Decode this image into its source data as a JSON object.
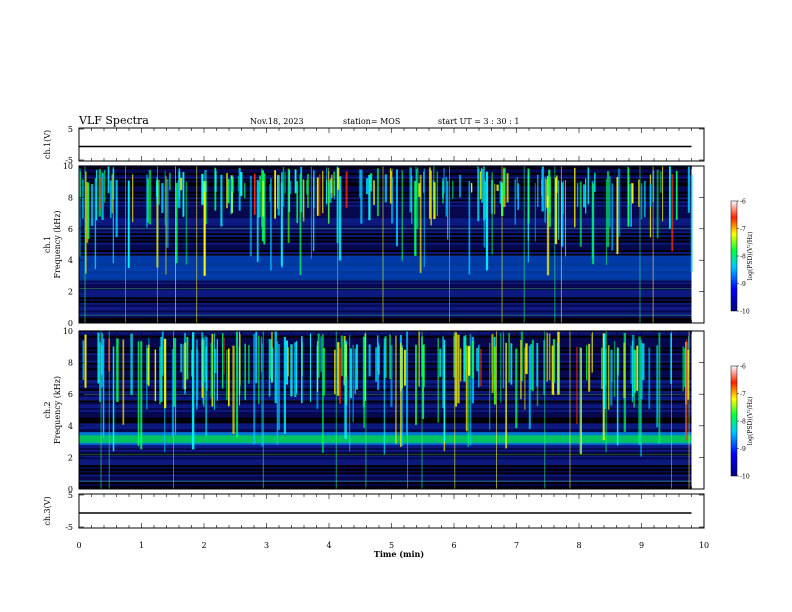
{
  "header": {
    "title": "VLF Spectra",
    "date": "Nov.18, 2023",
    "station": "station= MOS",
    "start": "start  UT =   3 : 30 : 1"
  },
  "colors": {
    "background": "#ffffff",
    "axis": "#000000",
    "spectrogram_low": "#000000",
    "colormap": [
      "#000033",
      "#0000ff",
      "#00c8ff",
      "#00ff40",
      "#ffff00",
      "#ff0000",
      "#ffffff"
    ]
  },
  "chart_data": [
    {
      "type": "line",
      "panel": "ch1-waveform",
      "ylabel": "ch.1(V)",
      "ylim": [
        -5,
        5
      ],
      "yticks": [
        "5",
        "-5"
      ],
      "xlim": [
        0,
        10
      ],
      "series": [
        {
          "x": [
            0,
            9.8
          ],
          "values": [
            0,
            0
          ]
        }
      ]
    },
    {
      "type": "heatmap",
      "panel": "ch1-spectrogram",
      "ylabel": "ch.1\nFrequency (kHz)",
      "ylim": [
        0,
        10
      ],
      "yticks": [
        "0",
        "2",
        "4",
        "6",
        "8",
        "10"
      ],
      "xlim": [
        0,
        10
      ],
      "data_end_min": 9.8,
      "background_band_khz": [
        [
          2.7,
          4.3
        ]
      ],
      "burst_band_khz": [
        6,
        10
      ],
      "colorbar": {
        "label": "log(PSD)(V²/Hz)",
        "range": [
          -10,
          -6
        ],
        "ticks": [
          "-6",
          "-7",
          "-8",
          "-9",
          "-10"
        ]
      }
    },
    {
      "type": "heatmap",
      "panel": "ch2-spectrogram",
      "ylabel": "ch.2\nFrequency (kHz)",
      "ylim": [
        0,
        10
      ],
      "yticks": [
        "0",
        "2",
        "4",
        "6",
        "8",
        "10"
      ],
      "xlim": [
        0,
        10
      ],
      "data_end_min": 9.8,
      "background_band_khz": [
        [
          2.8,
          3.6
        ]
      ],
      "burst_band_khz": [
        5,
        10
      ],
      "colorbar": {
        "label": "log(PSD)(V²/Hz)",
        "range": [
          -10,
          -6
        ],
        "ticks": [
          "-6",
          "-7",
          "-8",
          "-9",
          "-10"
        ]
      }
    },
    {
      "type": "line",
      "panel": "ch3-waveform",
      "ylabel": "ch.3(V)",
      "ylim": [
        -5,
        5
      ],
      "yticks": [
        "5",
        "-5"
      ],
      "xlim": [
        0,
        10
      ],
      "series": [
        {
          "x": [
            0,
            9.8
          ],
          "values": [
            0,
            0
          ]
        }
      ]
    }
  ],
  "xaxis": {
    "label": "Time (min)",
    "ticks": [
      "0",
      "1",
      "2",
      "3",
      "4",
      "5",
      "6",
      "7",
      "8",
      "9",
      "10"
    ]
  }
}
